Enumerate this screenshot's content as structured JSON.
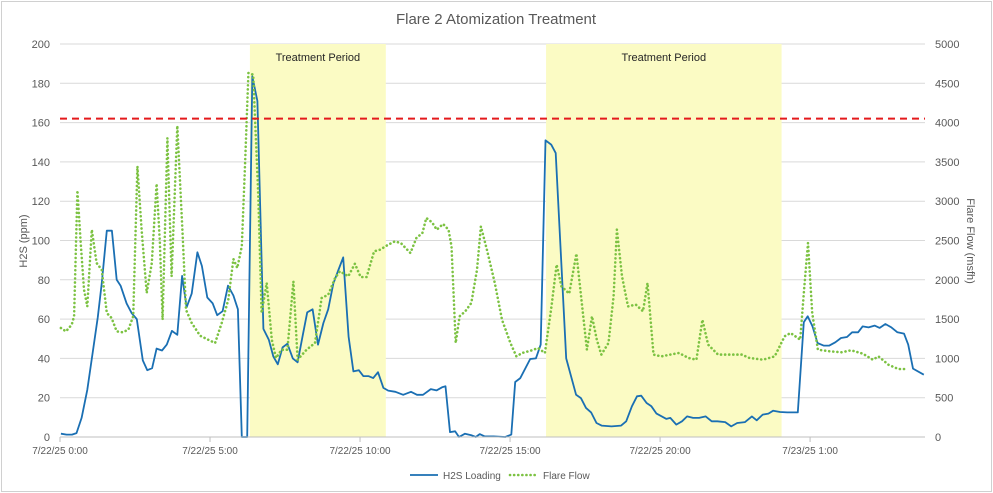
{
  "chart_data": {
    "type": "line",
    "title": "Flare 2 Atomization Treatment",
    "xlabel": "",
    "ylabel": "H2S (ppm)",
    "y2label": "Flare Flow (msfh)",
    "x_units": "hours since 7/22/25 0:00",
    "xlim": [
      0,
      28.83
    ],
    "ylim": [
      0,
      200
    ],
    "y2lim": [
      0,
      5000
    ],
    "yticks": [
      0,
      20,
      40,
      60,
      80,
      100,
      120,
      140,
      160,
      180,
      200
    ],
    "y2ticks": [
      0,
      500,
      1000,
      1500,
      2000,
      2500,
      3000,
      3500,
      4000,
      4500,
      5000
    ],
    "xticks": [
      {
        "x": 0,
        "label": "7/22/25 0:00"
      },
      {
        "x": 5,
        "label": "7/22/25 5:00"
      },
      {
        "x": 10,
        "label": "7/22/25 10:00"
      },
      {
        "x": 15,
        "label": "7/22/25 15:00"
      },
      {
        "x": 20,
        "label": "7/22/25 20:00"
      },
      {
        "x": 25,
        "label": "7/23/25 1:00"
      }
    ],
    "grid": true,
    "legend_position": "bottom",
    "threshold": {
      "value": 162,
      "axis": "left",
      "color": "#e41a1c",
      "style": "dashed"
    },
    "bands": [
      {
        "label": "Treatment Period",
        "start": 6.33,
        "end": 10.86,
        "color": "#fbfbc4"
      },
      {
        "label": "Treatment Period",
        "start": 16.2,
        "end": 24.05,
        "color": "#fbfbc4"
      }
    ],
    "series": [
      {
        "name": "H2S Loading",
        "axis": "left",
        "color": "#1a6fb3",
        "style": "solid",
        "x": [
          0.03,
          0.22,
          0.4,
          0.55,
          0.72,
          0.91,
          1.09,
          1.26,
          1.39,
          1.56,
          1.73,
          1.89,
          2.02,
          2.22,
          2.39,
          2.56,
          2.76,
          2.91,
          3.07,
          3.22,
          3.4,
          3.56,
          3.73,
          3.91,
          4.07,
          4.22,
          4.39,
          4.58,
          4.73,
          4.91,
          5.09,
          5.24,
          5.42,
          5.6,
          5.78,
          5.93,
          6.06,
          6.24,
          6.41,
          6.58,
          6.78,
          6.96,
          7.11,
          7.26,
          7.42,
          7.58,
          7.76,
          7.92,
          8.09,
          8.24,
          8.42,
          8.6,
          8.78,
          8.94,
          9.11,
          9.28,
          9.44,
          9.62,
          9.78,
          9.96,
          10.11,
          10.28,
          10.44,
          10.6,
          10.78,
          10.94,
          11.18,
          11.44,
          11.7,
          11.9,
          12.1,
          12.36,
          12.55,
          12.75,
          12.85,
          13.0,
          13.17,
          13.3,
          13.5,
          13.73,
          13.86,
          13.99,
          14.16,
          14.45,
          14.84,
          15.04,
          15.17,
          15.34,
          15.67,
          15.86,
          16.02,
          16.18,
          16.37,
          16.52,
          16.87,
          17.2,
          17.36,
          17.53,
          17.7,
          17.88,
          18.05,
          18.38,
          18.7,
          18.87,
          19.06,
          19.23,
          19.37,
          19.55,
          19.71,
          19.88,
          20.21,
          20.34,
          20.54,
          20.73,
          20.9,
          21.1,
          21.3,
          21.52,
          21.72,
          21.91,
          22.17,
          22.37,
          22.57,
          22.83,
          23.06,
          23.22,
          23.42,
          23.61,
          23.77,
          24.0,
          24.24,
          24.42,
          24.59,
          24.79,
          24.92,
          25.08,
          25.25,
          25.45,
          25.64,
          25.84,
          26.03,
          26.23,
          26.4,
          26.6,
          26.75,
          26.95,
          27.15,
          27.32,
          27.51,
          27.71,
          27.91,
          28.13,
          28.27,
          28.43,
          28.79
        ],
        "values": [
          1.7,
          1.2,
          1.2,
          2,
          9.7,
          24,
          43,
          61,
          78,
          105,
          105,
          80,
          77,
          68,
          63,
          60,
          39,
          34,
          35,
          45,
          44,
          47,
          54,
          52,
          82,
          66,
          73,
          94,
          87,
          71,
          68,
          62,
          64,
          77,
          72,
          65,
          0,
          0,
          183.5,
          171,
          55,
          49.5,
          41,
          37,
          45.6,
          47.5,
          40,
          38,
          51.6,
          63.4,
          65,
          47,
          58,
          65,
          78,
          85,
          91.4,
          51,
          33.4,
          34,
          31,
          31,
          30,
          33,
          25,
          23.6,
          23,
          21.5,
          23,
          21.5,
          21.5,
          24.4,
          23.7,
          25.4,
          25.8,
          2.5,
          2.9,
          0,
          1.7,
          0.8,
          0,
          1.5,
          0.3,
          0.3,
          0,
          1.2,
          28,
          30,
          39.7,
          40,
          47,
          151,
          148.8,
          144.5,
          40,
          21.5,
          19.8,
          14.8,
          12.5,
          7.1,
          5.8,
          5.4,
          5.8,
          8,
          15.6,
          20.7,
          21,
          17.3,
          15.6,
          11.9,
          9.2,
          9.7,
          6.3,
          8,
          10.5,
          9.7,
          9.7,
          10.5,
          8,
          8,
          7.6,
          5.4,
          7.1,
          7.6,
          10.5,
          8.5,
          11.4,
          11.9,
          13.4,
          12.7,
          12.5,
          12.5,
          12.5,
          58.4,
          61.4,
          56.3,
          47.8,
          46.5,
          46.5,
          48.2,
          50.4,
          50.9,
          53.3,
          53.3,
          56.3,
          55.8,
          56.7,
          55.5,
          57.5,
          55.8,
          53.3,
          52.6,
          47,
          34.8,
          31.7
        ]
      },
      {
        "name": "Flare Flow",
        "axis": "right",
        "color": "#7cc242",
        "style": "dotted",
        "x": [
          0.03,
          0.2,
          0.39,
          0.47,
          0.58,
          0.69,
          0.8,
          0.91,
          1.06,
          1.22,
          1.39,
          1.56,
          1.72,
          1.89,
          2.09,
          2.28,
          2.44,
          2.58,
          2.72,
          2.89,
          3.06,
          3.22,
          3.33,
          3.42,
          3.58,
          3.72,
          3.91,
          4.09,
          4.2,
          4.39,
          4.67,
          4.94,
          5.17,
          5.39,
          5.61,
          5.78,
          5.91,
          6.06,
          6.17,
          6.28,
          6.44,
          6.61,
          6.72,
          6.89,
          7.06,
          7.2,
          7.39,
          7.58,
          7.78,
          7.92,
          8.22,
          8.5,
          8.72,
          8.94,
          9.17,
          9.33,
          9.61,
          9.83,
          10.02,
          10.22,
          10.47,
          10.67,
          10.94,
          11.16,
          11.36,
          11.68,
          11.88,
          12.08,
          12.21,
          12.4,
          12.56,
          12.77,
          12.95,
          13.05,
          13.19,
          13.32,
          13.51,
          13.71,
          13.9,
          14.03,
          14.23,
          14.49,
          14.73,
          15.01,
          15.21,
          15.4,
          15.73,
          15.93,
          16.16,
          16.38,
          16.55,
          16.71,
          16.97,
          17.21,
          17.39,
          17.56,
          17.73,
          17.89,
          18.04,
          18.28,
          18.45,
          18.56,
          18.73,
          18.93,
          19.19,
          19.43,
          19.58,
          19.78,
          20.04,
          20.34,
          20.63,
          20.95,
          21.21,
          21.41,
          21.6,
          21.93,
          22.26,
          22.72,
          22.98,
          23.43,
          23.82,
          24.15,
          24.35,
          24.67,
          24.8,
          24.93,
          25.07,
          25.26,
          25.65,
          26.04,
          26.37,
          26.76,
          27.09,
          27.28,
          27.61,
          27.94,
          28.26
        ],
        "values": [
          1387,
          1344,
          1429,
          1535,
          3138,
          2468,
          1875,
          1662,
          2638,
          2214,
          2129,
          1578,
          1514,
          1344,
          1332,
          1366,
          1535,
          3444,
          2638,
          1832,
          2214,
          3223,
          2468,
          1493,
          3804,
          2044,
          3961,
          2553,
          1620,
          1450,
          1289,
          1238,
          1196,
          1450,
          1747,
          2265,
          2150,
          2426,
          3486,
          4631,
          4610,
          3062,
          1578,
          1959,
          1238,
          1005,
          1111,
          1111,
          1980,
          984,
          1111,
          1196,
          1768,
          1811,
          2023,
          2108,
          2044,
          2205,
          2036,
          2036,
          2362,
          2383,
          2447,
          2489,
          2468,
          2341,
          2532,
          2595,
          2786,
          2731,
          2638,
          2710,
          2638,
          2426,
          1196,
          1535,
          1599,
          1705,
          2129,
          2680,
          2383,
          1959,
          1493,
          1196,
          1026,
          1069,
          1103,
          1132,
          1069,
          1662,
          2193,
          1917,
          1824,
          2333,
          1705,
          1111,
          1535,
          1238,
          1048,
          1196,
          1790,
          2638,
          2044,
          1662,
          1684,
          1599,
          1959,
          1048,
          1026,
          1048,
          1069,
          1005,
          984,
          1493,
          1175,
          1048,
          1048,
          1048,
          1005,
          984,
          1026,
          1281,
          1323,
          1238,
          1875,
          2468,
          1578,
          1111,
          1090,
          1077,
          1103,
          1060,
          984,
          1026,
          920,
          865,
          865
        ]
      }
    ]
  }
}
